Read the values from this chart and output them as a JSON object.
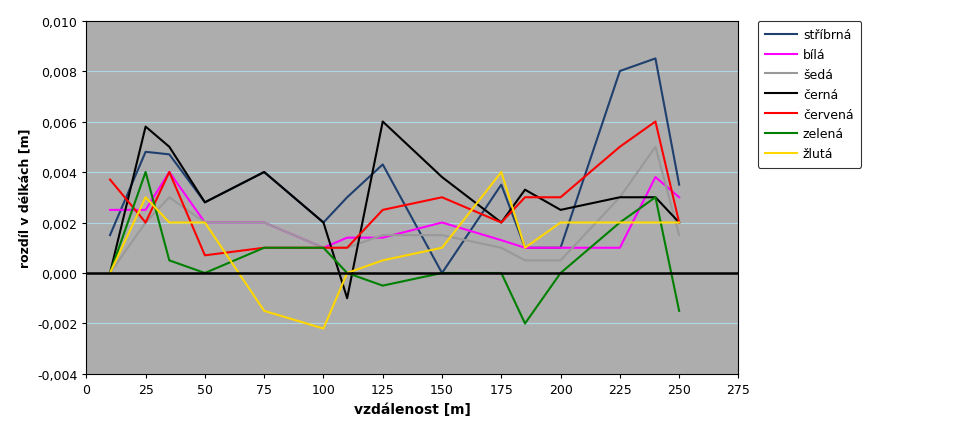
{
  "series": {
    "stříbrná": {
      "color": "#1F3F6E",
      "x": [
        10,
        25,
        35,
        50,
        75,
        100,
        110,
        125,
        150,
        175,
        185,
        200,
        225,
        240,
        250
      ],
      "y": [
        0.0015,
        0.0048,
        0.0047,
        0.0028,
        0.004,
        0.002,
        0.003,
        0.0043,
        0.0,
        0.0035,
        0.001,
        0.001,
        0.008,
        0.0085,
        0.0035
      ]
    },
    "bílá": {
      "color": "#FF00FF",
      "x": [
        10,
        25,
        35,
        50,
        75,
        100,
        110,
        125,
        150,
        175,
        185,
        200,
        225,
        240,
        250
      ],
      "y": [
        0.0025,
        0.0025,
        0.004,
        0.002,
        0.002,
        0.001,
        0.0014,
        0.0014,
        0.002,
        0.0013,
        0.001,
        0.001,
        0.001,
        0.0038,
        0.003
      ]
    },
    "šedá": {
      "color": "#999999",
      "x": [
        10,
        25,
        35,
        50,
        75,
        100,
        110,
        125,
        150,
        175,
        185,
        200,
        225,
        240,
        250
      ],
      "y": [
        0.0,
        0.002,
        0.003,
        0.002,
        0.002,
        0.001,
        0.001,
        0.0015,
        0.0015,
        0.001,
        0.0005,
        0.0005,
        0.003,
        0.005,
        0.0015
      ]
    },
    "černá": {
      "color": "#000000",
      "x": [
        10,
        25,
        35,
        50,
        75,
        100,
        110,
        125,
        150,
        175,
        185,
        200,
        225,
        240,
        250
      ],
      "y": [
        0.0,
        0.0058,
        0.005,
        0.0028,
        0.004,
        0.002,
        -0.001,
        0.006,
        0.0038,
        0.002,
        0.0033,
        0.0025,
        0.003,
        0.003,
        0.002
      ]
    },
    "červená": {
      "color": "#FF0000",
      "x": [
        10,
        25,
        35,
        50,
        75,
        100,
        110,
        125,
        150,
        175,
        185,
        200,
        225,
        240,
        250
      ],
      "y": [
        0.0037,
        0.002,
        0.004,
        0.0007,
        0.001,
        0.001,
        0.001,
        0.0025,
        0.003,
        0.002,
        0.003,
        0.003,
        0.005,
        0.006,
        0.002
      ]
    },
    "zelená": {
      "color": "#008000",
      "x": [
        10,
        25,
        35,
        50,
        75,
        100,
        110,
        125,
        150,
        175,
        185,
        200,
        225,
        240,
        250
      ],
      "y": [
        0.0,
        0.004,
        0.0005,
        0.0,
        0.001,
        0.001,
        0.0,
        -0.0005,
        0.0,
        0.0,
        -0.002,
        0.0,
        0.002,
        0.003,
        -0.0015
      ]
    },
    "žlutá": {
      "color": "#FFD700",
      "x": [
        10,
        25,
        35,
        50,
        75,
        100,
        110,
        125,
        150,
        175,
        185,
        200,
        225,
        240,
        250
      ],
      "y": [
        0.0,
        0.003,
        0.002,
        0.002,
        -0.0015,
        -0.0022,
        0.0,
        0.0005,
        0.001,
        0.004,
        0.001,
        0.002,
        0.002,
        0.002,
        0.002
      ]
    }
  },
  "legend_order": [
    "stříbrná",
    "bílá",
    "šedá",
    "černá",
    "červená",
    "zelená",
    "žlutá"
  ],
  "xlabel": "vzdálenost [m]",
  "ylabel": "rozdíl v délkách [m]",
  "xlim": [
    0,
    275
  ],
  "ylim": [
    -0.004,
    0.01
  ],
  "yticks": [
    -0.004,
    -0.002,
    0.0,
    0.002,
    0.004,
    0.006,
    0.008,
    0.01
  ],
  "xticks": [
    0,
    25,
    50,
    75,
    100,
    125,
    150,
    175,
    200,
    225,
    250,
    275
  ],
  "bg_color": "#ADADAD",
  "grid_color": "#ADD8E6",
  "zero_line_color": "#000000",
  "fig_width": 9.59,
  "fig_height": 4.31,
  "dpi": 100
}
